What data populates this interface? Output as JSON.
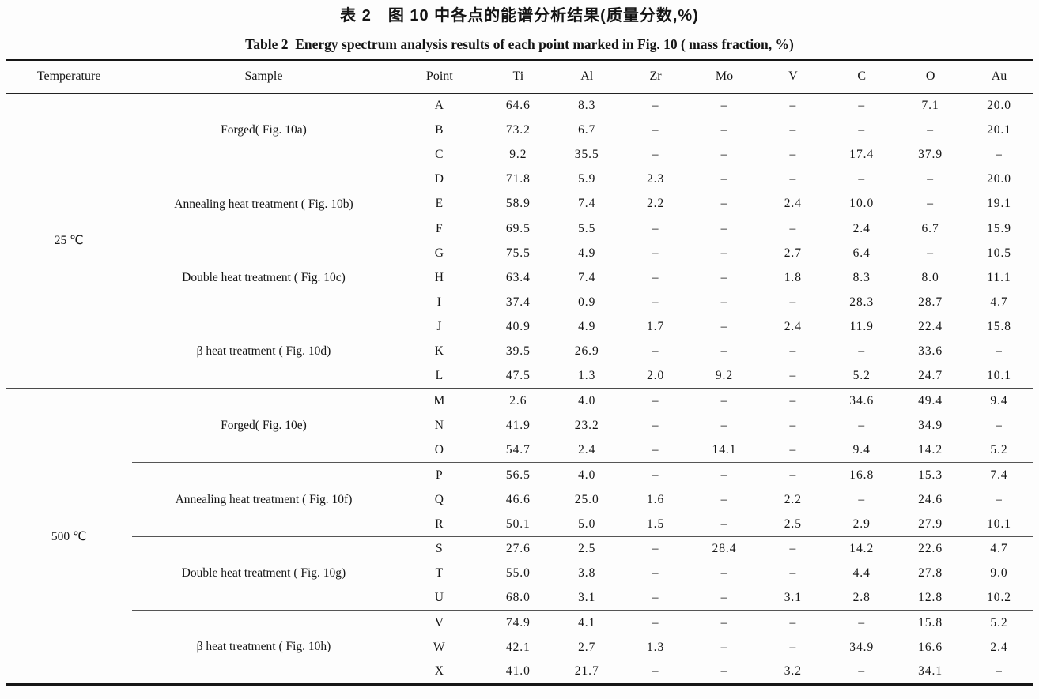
{
  "titles": {
    "zh": "表 2　图 10 中各点的能谱分析结果(质量分数,%)",
    "en": "Table 2  Energy spectrum analysis results of each point marked in Fig. 10 ( mass fraction, %)"
  },
  "ink_color": "#151515",
  "table": {
    "columns": [
      "Temperature",
      "Sample",
      "Point",
      "Ti",
      "Al",
      "Zr",
      "Mo",
      "V",
      "C",
      "O",
      "Au"
    ],
    "element_keys": [
      "ti",
      "al",
      "zr",
      "mo",
      "v",
      "c",
      "o",
      "au"
    ],
    "sections": [
      {
        "temperature": "25 ℃",
        "groups": [
          {
            "sample": "Forged( Fig. 10a)",
            "rule_below": true,
            "rows": [
              {
                "point": "A",
                "values": [
                  "64.6",
                  "8.3",
                  "–",
                  "–",
                  "–",
                  "–",
                  "7.1",
                  "20.0"
                ]
              },
              {
                "point": "B",
                "values": [
                  "73.2",
                  "6.7",
                  "–",
                  "–",
                  "–",
                  "–",
                  "–",
                  "20.1"
                ]
              },
              {
                "point": "C",
                "values": [
                  "9.2",
                  "35.5",
                  "–",
                  "–",
                  "–",
                  "17.4",
                  "37.9",
                  "–"
                ]
              }
            ]
          },
          {
            "sample": "Annealing heat treatment ( Fig. 10b)",
            "rule_below": false,
            "rows": [
              {
                "point": "D",
                "values": [
                  "71.8",
                  "5.9",
                  "2.3",
                  "–",
                  "–",
                  "–",
                  "–",
                  "20.0"
                ]
              },
              {
                "point": "E",
                "values": [
                  "58.9",
                  "7.4",
                  "2.2",
                  "–",
                  "2.4",
                  "10.0",
                  "–",
                  "19.1"
                ]
              },
              {
                "point": "F",
                "values": [
                  "69.5",
                  "5.5",
                  "–",
                  "–",
                  "–",
                  "2.4",
                  "6.7",
                  "15.9"
                ]
              }
            ]
          },
          {
            "sample": "Double heat treatment ( Fig. 10c)",
            "rule_below": false,
            "rows": [
              {
                "point": "G",
                "values": [
                  "75.5",
                  "4.9",
                  "–",
                  "–",
                  "2.7",
                  "6.4",
                  "–",
                  "10.5"
                ]
              },
              {
                "point": "H",
                "values": [
                  "63.4",
                  "7.4",
                  "–",
                  "–",
                  "1.8",
                  "8.3",
                  "8.0",
                  "11.1"
                ]
              },
              {
                "point": "I",
                "values": [
                  "37.4",
                  "0.9",
                  "–",
                  "–",
                  "–",
                  "28.3",
                  "28.7",
                  "4.7"
                ]
              }
            ]
          },
          {
            "sample": "β heat treatment ( Fig. 10d)",
            "rule_below": false,
            "rows": [
              {
                "point": "J",
                "values": [
                  "40.9",
                  "4.9",
                  "1.7",
                  "–",
                  "2.4",
                  "11.9",
                  "22.4",
                  "15.8"
                ]
              },
              {
                "point": "K",
                "values": [
                  "39.5",
                  "26.9",
                  "–",
                  "–",
                  "–",
                  "–",
                  "33.6",
                  "–"
                ]
              },
              {
                "point": "L",
                "values": [
                  "47.5",
                  "1.3",
                  "2.0",
                  "9.2",
                  "–",
                  "5.2",
                  "24.7",
                  "10.1"
                ]
              }
            ]
          }
        ]
      },
      {
        "temperature": "500 ℃",
        "groups": [
          {
            "sample": "Forged( Fig. 10e)",
            "rule_below": true,
            "rows": [
              {
                "point": "M",
                "values": [
                  "2.6",
                  "4.0",
                  "–",
                  "–",
                  "–",
                  "34.6",
                  "49.4",
                  "9.4"
                ]
              },
              {
                "point": "N",
                "values": [
                  "41.9",
                  "23.2",
                  "–",
                  "–",
                  "–",
                  "–",
                  "34.9",
                  "–"
                ]
              },
              {
                "point": "O",
                "values": [
                  "54.7",
                  "2.4",
                  "–",
                  "14.1",
                  "–",
                  "9.4",
                  "14.2",
                  "5.2"
                ]
              }
            ]
          },
          {
            "sample": "Annealing heat treatment ( Fig. 10f)",
            "rule_below": true,
            "rows": [
              {
                "point": "P",
                "values": [
                  "56.5",
                  "4.0",
                  "–",
                  "–",
                  "–",
                  "16.8",
                  "15.3",
                  "7.4"
                ]
              },
              {
                "point": "Q",
                "values": [
                  "46.6",
                  "25.0",
                  "1.6",
                  "–",
                  "2.2",
                  "–",
                  "24.6",
                  "–"
                ]
              },
              {
                "point": "R",
                "values": [
                  "50.1",
                  "5.0",
                  "1.5",
                  "–",
                  "2.5",
                  "2.9",
                  "27.9",
                  "10.1"
                ]
              }
            ]
          },
          {
            "sample": "Double heat treatment ( Fig. 10g)",
            "rule_below": true,
            "rows": [
              {
                "point": "S",
                "values": [
                  "27.6",
                  "2.5",
                  "–",
                  "28.4",
                  "–",
                  "14.2",
                  "22.6",
                  "4.7"
                ]
              },
              {
                "point": "T",
                "values": [
                  "55.0",
                  "3.8",
                  "–",
                  "–",
                  "–",
                  "4.4",
                  "27.8",
                  "9.0"
                ]
              },
              {
                "point": "U",
                "values": [
                  "68.0",
                  "3.1",
                  "–",
                  "–",
                  "3.1",
                  "2.8",
                  "12.8",
                  "10.2"
                ]
              }
            ]
          },
          {
            "sample": "β heat treatment ( Fig. 10h)",
            "rule_below": false,
            "rows": [
              {
                "point": "V",
                "values": [
                  "74.9",
                  "4.1",
                  "–",
                  "–",
                  "–",
                  "–",
                  "15.8",
                  "5.2"
                ]
              },
              {
                "point": "W",
                "values": [
                  "42.1",
                  "2.7",
                  "1.3",
                  "–",
                  "–",
                  "34.9",
                  "16.6",
                  "2.4"
                ]
              },
              {
                "point": "X",
                "values": [
                  "41.0",
                  "21.7",
                  "–",
                  "–",
                  "3.2",
                  "–",
                  "34.1",
                  "–"
                ]
              }
            ]
          }
        ]
      }
    ]
  }
}
